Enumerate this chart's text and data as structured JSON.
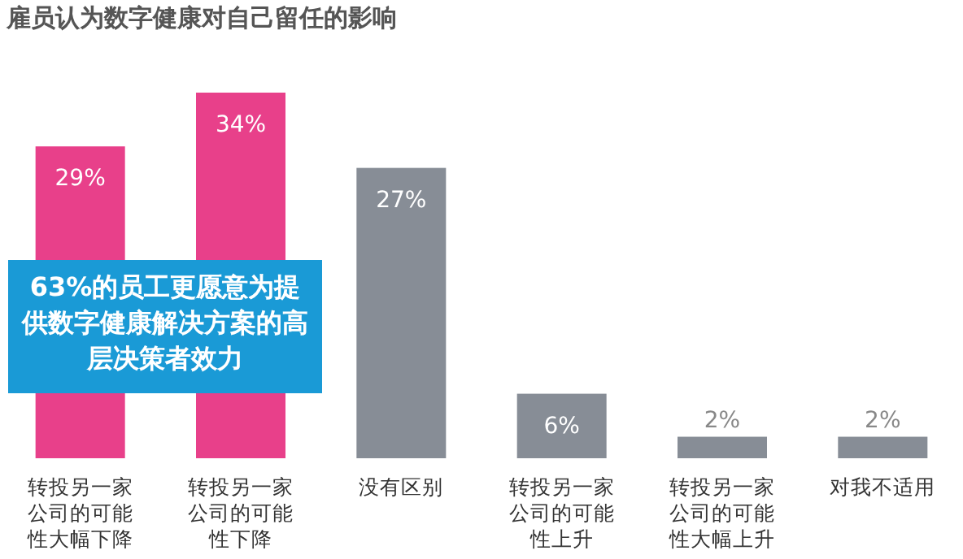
{
  "chart_data": {
    "type": "bar",
    "title": "雇员认为数字健康对自己留任的影响",
    "categories": [
      "转投另一家公司的可能性大幅下降",
      "转投另一家公司的可能性下降",
      "没有区别",
      "转投另一家公司的可能性上升",
      "转投另一家公司的可能性大幅上升",
      "对我不适用"
    ],
    "values": [
      29,
      34,
      27,
      6,
      2,
      2
    ],
    "colors": [
      "#e8408a",
      "#e8408a",
      "#878d96",
      "#878d96",
      "#878d96",
      "#878d96"
    ],
    "value_labels": [
      "29%",
      "34%",
      "27%",
      "6%",
      "2%",
      "2%"
    ],
    "annotations": [
      "63%的员工更愿意为提供数字健康解决方案的高层决策者效力"
    ]
  }
}
